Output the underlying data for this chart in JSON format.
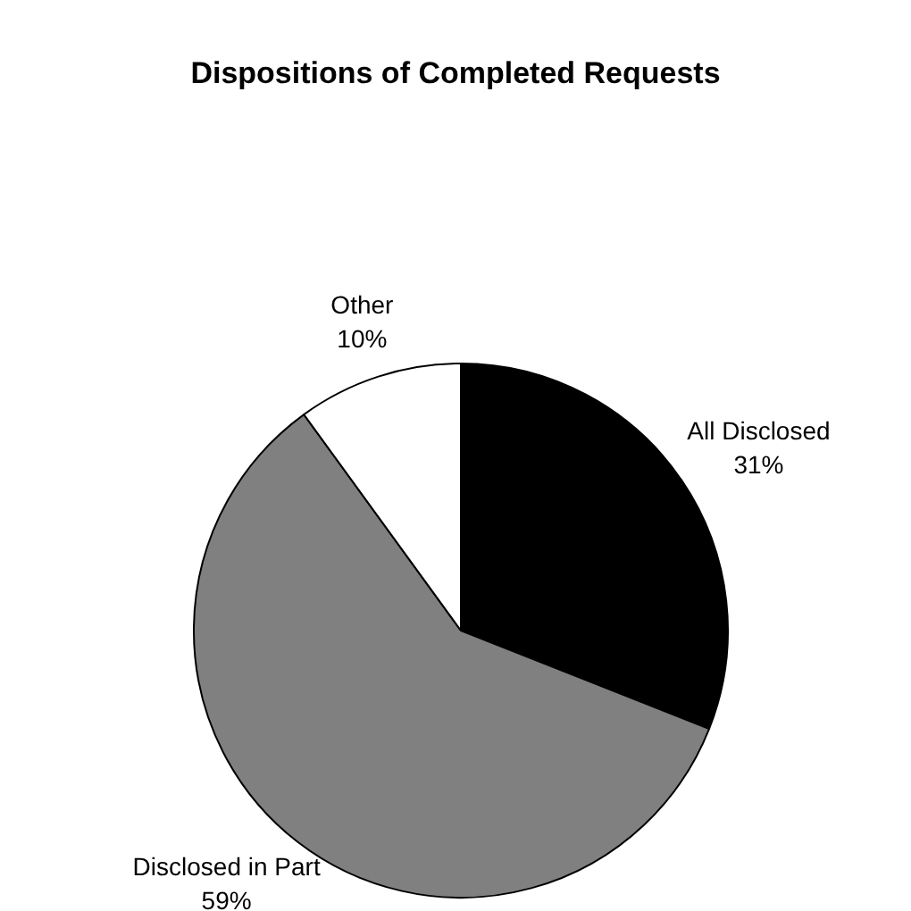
{
  "chart_data": {
    "type": "pie",
    "title": "Dispositions of Completed Requests",
    "categories": [
      "All Disclosed",
      "Disclosed in Part",
      "Other"
    ],
    "values": [
      31,
      59,
      10
    ],
    "colors": [
      "#000000",
      "#808080",
      "#ffffff"
    ],
    "value_labels": [
      "31%",
      "59%",
      "10%"
    ],
    "legend": false
  }
}
